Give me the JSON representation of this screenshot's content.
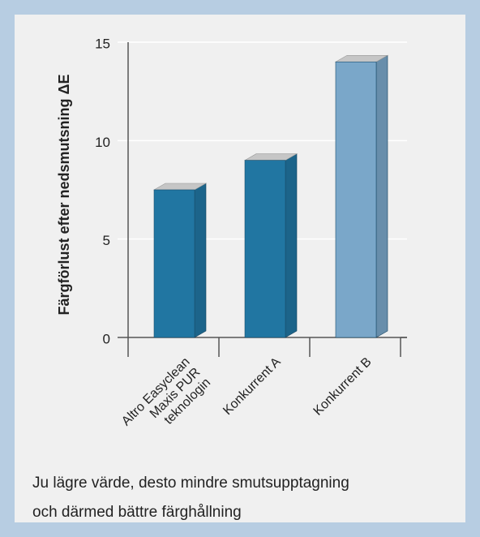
{
  "chart_data": {
    "type": "bar3d",
    "y_label": "Färgförlust efter nedsmutsning ΔE",
    "categories": [
      "Altro Easyclean\nMaxis PUR\nteknologin",
      "Konkurrent A",
      "Konkurrent B"
    ],
    "values": [
      7.5,
      9,
      14
    ],
    "colors": [
      "#2176a2",
      "#2176a2",
      "#7aa7c9"
    ],
    "ylim": [
      0,
      15
    ],
    "yticks": [
      0,
      5,
      10,
      15
    ],
    "grid": true,
    "note": "Ju lägre värde, desto mindre smutsupptagning\noch därmed bättre färghållning"
  }
}
